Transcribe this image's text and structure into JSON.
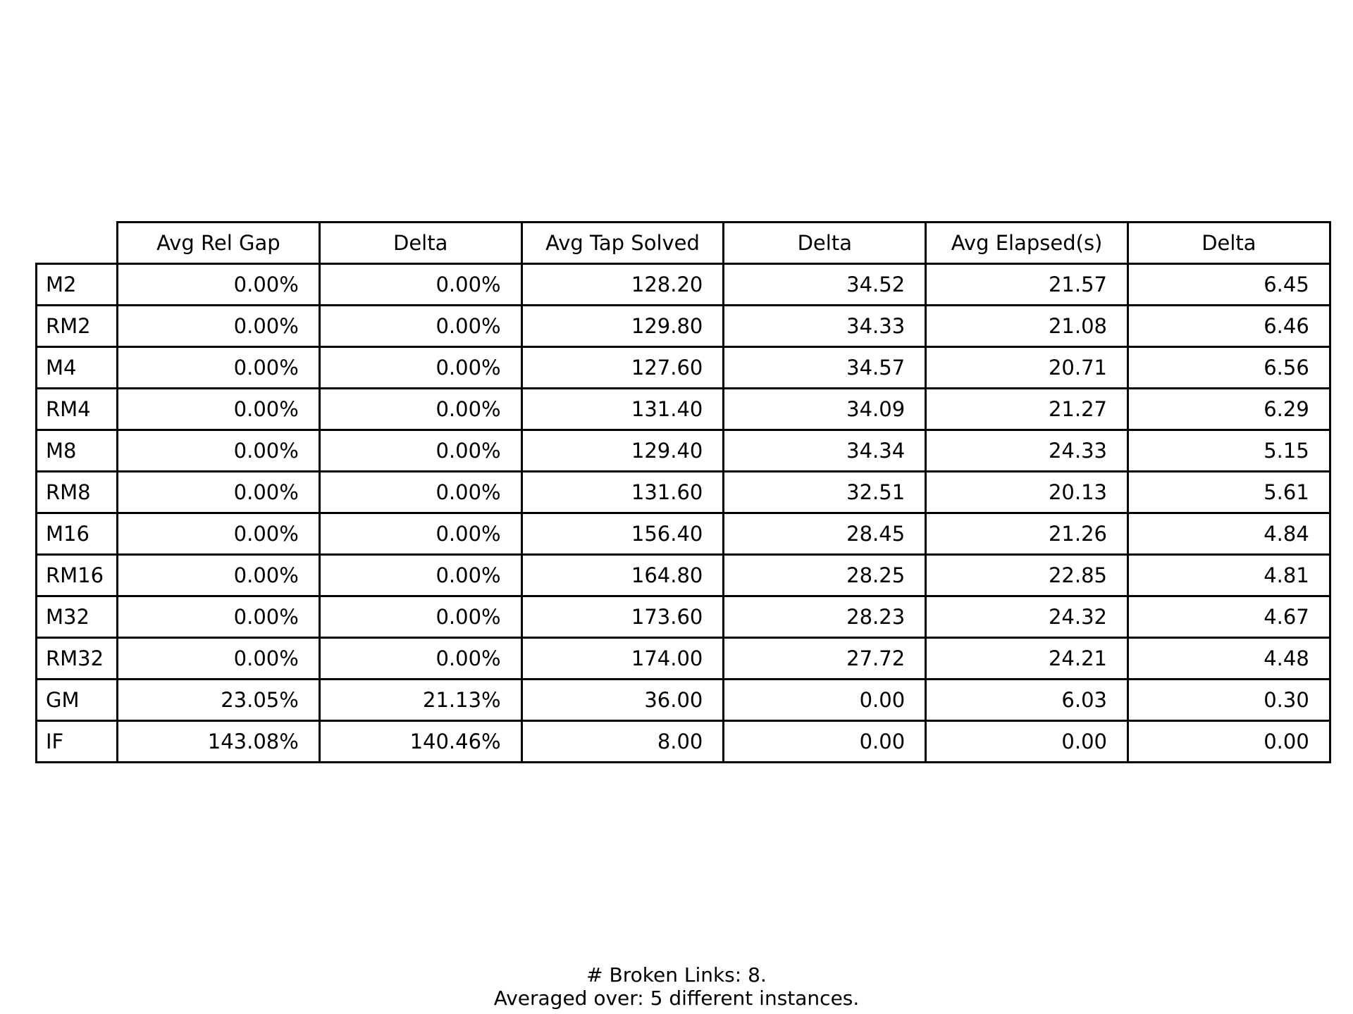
{
  "chart_data": {
    "type": "table",
    "columns": [
      "",
      "Avg Rel Gap",
      "Delta",
      "Avg Tap Solved",
      "Delta",
      "Avg Elapsed(s)",
      "Delta"
    ],
    "rows": [
      {
        "label": "M2",
        "cells": [
          "0.00%",
          "0.00%",
          "128.20",
          "34.52",
          "21.57",
          "6.45"
        ]
      },
      {
        "label": "RM2",
        "cells": [
          "0.00%",
          "0.00%",
          "129.80",
          "34.33",
          "21.08",
          "6.46"
        ]
      },
      {
        "label": "M4",
        "cells": [
          "0.00%",
          "0.00%",
          "127.60",
          "34.57",
          "20.71",
          "6.56"
        ]
      },
      {
        "label": "RM4",
        "cells": [
          "0.00%",
          "0.00%",
          "131.40",
          "34.09",
          "21.27",
          "6.29"
        ]
      },
      {
        "label": "M8",
        "cells": [
          "0.00%",
          "0.00%",
          "129.40",
          "34.34",
          "24.33",
          "5.15"
        ]
      },
      {
        "label": "RM8",
        "cells": [
          "0.00%",
          "0.00%",
          "131.60",
          "32.51",
          "20.13",
          "5.61"
        ]
      },
      {
        "label": "M16",
        "cells": [
          "0.00%",
          "0.00%",
          "156.40",
          "28.45",
          "21.26",
          "4.84"
        ]
      },
      {
        "label": "RM16",
        "cells": [
          "0.00%",
          "0.00%",
          "164.80",
          "28.25",
          "22.85",
          "4.81"
        ]
      },
      {
        "label": "M32",
        "cells": [
          "0.00%",
          "0.00%",
          "173.60",
          "28.23",
          "24.32",
          "4.67"
        ]
      },
      {
        "label": "RM32",
        "cells": [
          "0.00%",
          "0.00%",
          "174.00",
          "27.72",
          "24.21",
          "4.48"
        ]
      },
      {
        "label": "GM",
        "cells": [
          "23.05%",
          "21.13%",
          "36.00",
          "0.00",
          "6.03",
          "0.30"
        ]
      },
      {
        "label": "IF",
        "cells": [
          "143.08%",
          "140.46%",
          "8.00",
          "0.00",
          "0.00",
          "0.00"
        ]
      }
    ]
  },
  "footer": {
    "line1": "# Broken Links: 8.",
    "line2": "Averaged over: 5 different instances."
  }
}
